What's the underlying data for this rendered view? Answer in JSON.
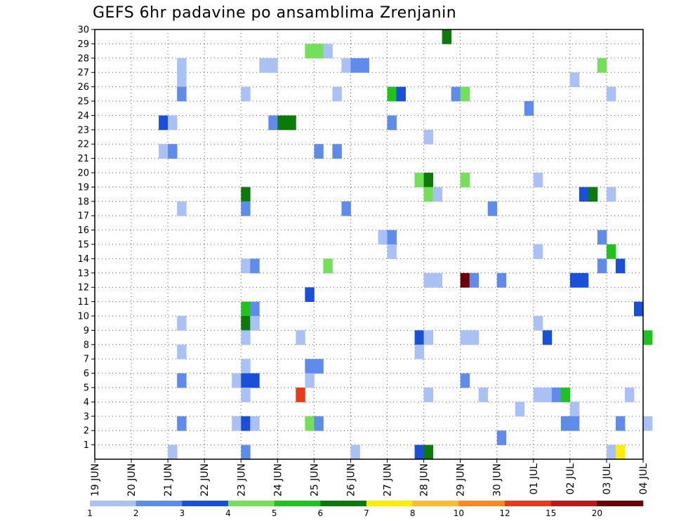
{
  "chart_data": {
    "type": "heatmap",
    "title": "GEFS 6hr padavine po ansamblima Zrenjanin",
    "x_tick_labels": [
      "19 JUN",
      "20 JUN",
      "21 JUN",
      "22 JUN",
      "23 JUN",
      "24 JUN",
      "25 JUN",
      "26 JUN",
      "27 JUN",
      "28 JUN",
      "29 JUN",
      "30 JUN",
      "01 JUL",
      "02 JUL",
      "03 JUL",
      "04 JUL"
    ],
    "y_tick_labels": [
      "1",
      "2",
      "3",
      "4",
      "5",
      "6",
      "7",
      "8",
      "9",
      "10",
      "11",
      "12",
      "13",
      "14",
      "15",
      "16",
      "17",
      "18",
      "19",
      "20",
      "21",
      "22",
      "23",
      "24",
      "25",
      "26",
      "27",
      "28",
      "29",
      "30"
    ],
    "ylim": [
      0,
      30
    ],
    "x_steps_per_day": 4,
    "grid": true,
    "colorbar": {
      "labels": [
        "1",
        "2",
        "3",
        "4",
        "5",
        "6",
        "7",
        "8",
        "10",
        "12",
        "15",
        "20"
      ],
      "colors": [
        "#a9c1f5",
        "#5f8bea",
        "#1a4fd8",
        "#74e05a",
        "#1fc21f",
        "#0b7a0b",
        "#ffee00",
        "#ffbb33",
        "#ff8822",
        "#e83a1a",
        "#c01818",
        "#6b0000"
      ]
    },
    "cells": [
      {
        "member": 30,
        "step": 38,
        "cat": 5
      },
      {
        "member": 29,
        "step": 23,
        "cat": 3
      },
      {
        "member": 29,
        "step": 24,
        "cat": 3
      },
      {
        "member": 29,
        "step": 25,
        "cat": 0
      },
      {
        "member": 28,
        "step": 9,
        "cat": 0
      },
      {
        "member": 28,
        "step": 18,
        "cat": 0
      },
      {
        "member": 28,
        "step": 19,
        "cat": 0
      },
      {
        "member": 28,
        "step": 27,
        "cat": 0
      },
      {
        "member": 28,
        "step": 28,
        "cat": 1
      },
      {
        "member": 28,
        "step": 29,
        "cat": 1
      },
      {
        "member": 28,
        "step": 55,
        "cat": 3
      },
      {
        "member": 27,
        "step": 9,
        "cat": 0
      },
      {
        "member": 27,
        "step": 52,
        "cat": 0
      },
      {
        "member": 26,
        "step": 9,
        "cat": 1
      },
      {
        "member": 26,
        "step": 16,
        "cat": 0
      },
      {
        "member": 26,
        "step": 26,
        "cat": 0
      },
      {
        "member": 26,
        "step": 32,
        "cat": 4
      },
      {
        "member": 26,
        "step": 33,
        "cat": 2
      },
      {
        "member": 26,
        "step": 39,
        "cat": 1
      },
      {
        "member": 26,
        "step": 40,
        "cat": 3
      },
      {
        "member": 26,
        "step": 56,
        "cat": 0
      },
      {
        "member": 25,
        "step": 47,
        "cat": 1
      },
      {
        "member": 24,
        "step": 7,
        "cat": 2
      },
      {
        "member": 24,
        "step": 8,
        "cat": 0
      },
      {
        "member": 24,
        "step": 19,
        "cat": 1
      },
      {
        "member": 24,
        "step": 20,
        "cat": 5
      },
      {
        "member": 24,
        "step": 21,
        "cat": 5
      },
      {
        "member": 24,
        "step": 32,
        "cat": 1
      },
      {
        "member": 23,
        "step": 36,
        "cat": 0
      },
      {
        "member": 22,
        "step": 7,
        "cat": 0
      },
      {
        "member": 22,
        "step": 8,
        "cat": 1
      },
      {
        "member": 22,
        "step": 24,
        "cat": 1
      },
      {
        "member": 22,
        "step": 26,
        "cat": 1
      },
      {
        "member": 20,
        "step": 35,
        "cat": 3
      },
      {
        "member": 20,
        "step": 36,
        "cat": 5
      },
      {
        "member": 20,
        "step": 40,
        "cat": 3
      },
      {
        "member": 20,
        "step": 48,
        "cat": 0
      },
      {
        "member": 19,
        "step": 16,
        "cat": 5
      },
      {
        "member": 19,
        "step": 36,
        "cat": 3
      },
      {
        "member": 19,
        "step": 37,
        "cat": 0
      },
      {
        "member": 19,
        "step": 53,
        "cat": 2
      },
      {
        "member": 19,
        "step": 54,
        "cat": 5
      },
      {
        "member": 19,
        "step": 56,
        "cat": 0
      },
      {
        "member": 18,
        "step": 9,
        "cat": 0
      },
      {
        "member": 18,
        "step": 16,
        "cat": 1
      },
      {
        "member": 18,
        "step": 27,
        "cat": 1
      },
      {
        "member": 18,
        "step": 43,
        "cat": 1
      },
      {
        "member": 16,
        "step": 31,
        "cat": 0
      },
      {
        "member": 16,
        "step": 32,
        "cat": 1
      },
      {
        "member": 16,
        "step": 55,
        "cat": 1
      },
      {
        "member": 15,
        "step": 32,
        "cat": 0
      },
      {
        "member": 15,
        "step": 48,
        "cat": 0
      },
      {
        "member": 15,
        "step": 56,
        "cat": 4
      },
      {
        "member": 14,
        "step": 16,
        "cat": 0
      },
      {
        "member": 14,
        "step": 17,
        "cat": 1
      },
      {
        "member": 14,
        "step": 25,
        "cat": 3
      },
      {
        "member": 14,
        "step": 55,
        "cat": 1
      },
      {
        "member": 14,
        "step": 57,
        "cat": 2
      },
      {
        "member": 13,
        "step": 36,
        "cat": 0
      },
      {
        "member": 13,
        "step": 37,
        "cat": 0
      },
      {
        "member": 13,
        "step": 40,
        "cat": 11
      },
      {
        "member": 13,
        "step": 41,
        "cat": 1
      },
      {
        "member": 13,
        "step": 44,
        "cat": 1
      },
      {
        "member": 13,
        "step": 52,
        "cat": 2
      },
      {
        "member": 13,
        "step": 53,
        "cat": 2
      },
      {
        "member": 12,
        "step": 23,
        "cat": 2
      },
      {
        "member": 11,
        "step": 16,
        "cat": 4
      },
      {
        "member": 11,
        "step": 17,
        "cat": 1
      },
      {
        "member": 11,
        "step": 59,
        "cat": 2
      },
      {
        "member": 10,
        "step": 9,
        "cat": 0
      },
      {
        "member": 10,
        "step": 16,
        "cat": 5
      },
      {
        "member": 10,
        "step": 17,
        "cat": 0
      },
      {
        "member": 10,
        "step": 48,
        "cat": 0
      },
      {
        "member": 9,
        "step": 16,
        "cat": 0
      },
      {
        "member": 9,
        "step": 22,
        "cat": 0
      },
      {
        "member": 9,
        "step": 35,
        "cat": 2
      },
      {
        "member": 9,
        "step": 36,
        "cat": 0
      },
      {
        "member": 9,
        "step": 40,
        "cat": 0
      },
      {
        "member": 9,
        "step": 41,
        "cat": 0
      },
      {
        "member": 9,
        "step": 49,
        "cat": 2
      },
      {
        "member": 9,
        "step": 60,
        "cat": 4
      },
      {
        "member": 8,
        "step": 9,
        "cat": 0
      },
      {
        "member": 8,
        "step": 35,
        "cat": 0
      },
      {
        "member": 7,
        "step": 16,
        "cat": 0
      },
      {
        "member": 7,
        "step": 23,
        "cat": 1
      },
      {
        "member": 7,
        "step": 24,
        "cat": 1
      },
      {
        "member": 6,
        "step": 9,
        "cat": 1
      },
      {
        "member": 6,
        "step": 15,
        "cat": 0
      },
      {
        "member": 6,
        "step": 16,
        "cat": 2
      },
      {
        "member": 6,
        "step": 17,
        "cat": 2
      },
      {
        "member": 6,
        "step": 23,
        "cat": 0
      },
      {
        "member": 6,
        "step": 40,
        "cat": 1
      },
      {
        "member": 5,
        "step": 16,
        "cat": 0
      },
      {
        "member": 5,
        "step": 22,
        "cat": 9
      },
      {
        "member": 5,
        "step": 36,
        "cat": 0
      },
      {
        "member": 5,
        "step": 42,
        "cat": 0
      },
      {
        "member": 5,
        "step": 48,
        "cat": 0
      },
      {
        "member": 5,
        "step": 49,
        "cat": 0
      },
      {
        "member": 5,
        "step": 50,
        "cat": 1
      },
      {
        "member": 5,
        "step": 51,
        "cat": 4
      },
      {
        "member": 5,
        "step": 58,
        "cat": 0
      },
      {
        "member": 4,
        "step": 46,
        "cat": 0
      },
      {
        "member": 4,
        "step": 52,
        "cat": 0
      },
      {
        "member": 3,
        "step": 9,
        "cat": 1
      },
      {
        "member": 3,
        "step": 15,
        "cat": 0
      },
      {
        "member": 3,
        "step": 16,
        "cat": 2
      },
      {
        "member": 3,
        "step": 17,
        "cat": 0
      },
      {
        "member": 3,
        "step": 23,
        "cat": 3
      },
      {
        "member": 3,
        "step": 24,
        "cat": 1
      },
      {
        "member": 3,
        "step": 51,
        "cat": 1
      },
      {
        "member": 3,
        "step": 52,
        "cat": 1
      },
      {
        "member": 3,
        "step": 57,
        "cat": 1
      },
      {
        "member": 3,
        "step": 60,
        "cat": 0
      },
      {
        "member": 2,
        "step": 44,
        "cat": 1
      },
      {
        "member": 1,
        "step": 8,
        "cat": 0
      },
      {
        "member": 1,
        "step": 16,
        "cat": 1
      },
      {
        "member": 1,
        "step": 28,
        "cat": 0
      },
      {
        "member": 1,
        "step": 35,
        "cat": 2
      },
      {
        "member": 1,
        "step": 36,
        "cat": 5
      },
      {
        "member": 1,
        "step": 56,
        "cat": 0
      },
      {
        "member": 1,
        "step": 57,
        "cat": 6
      }
    ]
  }
}
